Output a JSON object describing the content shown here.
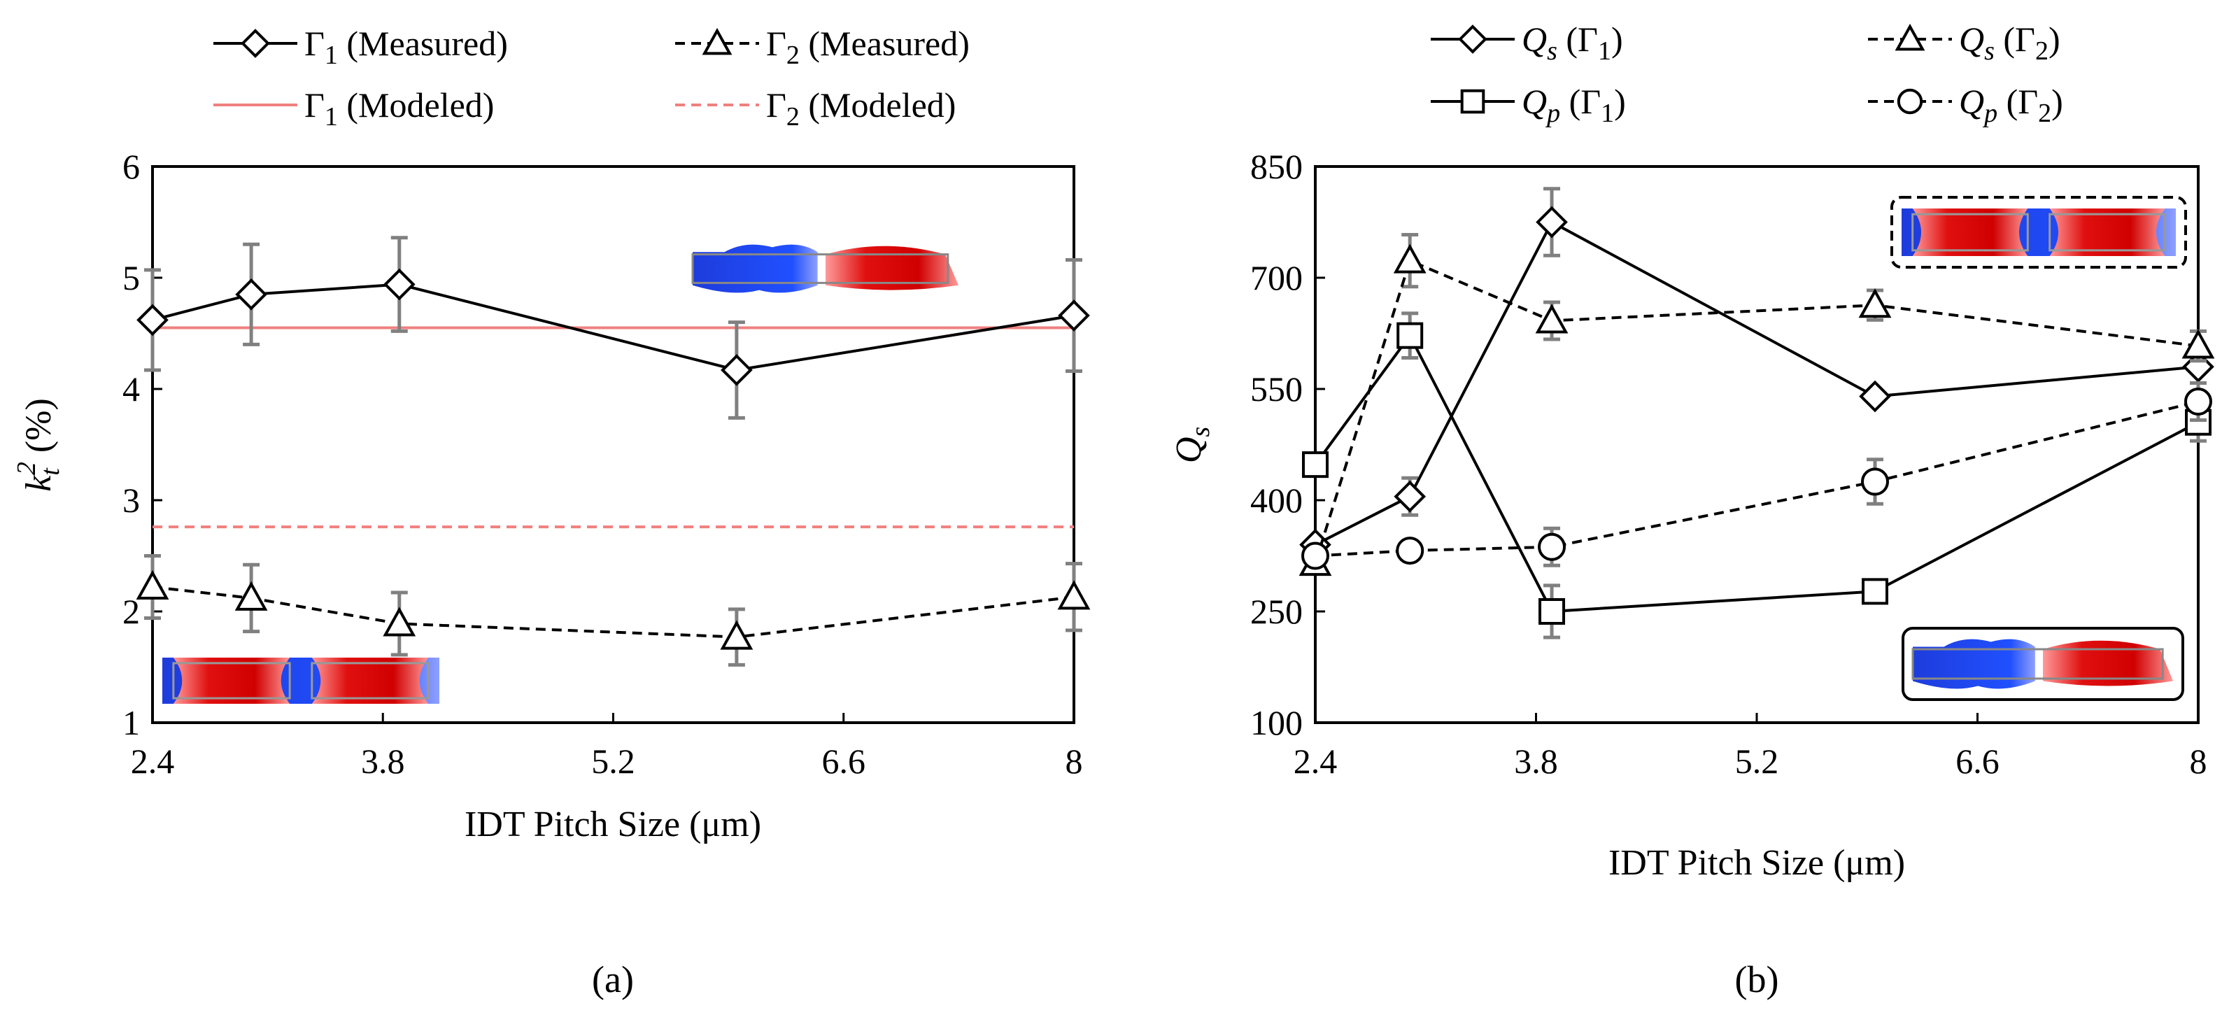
{
  "chart_data": [
    {
      "panel": "a",
      "caption": "(a)",
      "type": "line",
      "xlabel": "IDT Pitch Size (μm)",
      "ylabel": {
        "base": "k",
        "sub": "t",
        "sup": "2",
        "unit": " (%)"
      },
      "xlim": [
        2.4,
        8
      ],
      "ylim": [
        1,
        6
      ],
      "xticks": [
        2.4,
        3.8,
        5.2,
        6.6,
        8
      ],
      "xtick_labels": [
        "2.4",
        "3.8",
        "5.2",
        "6.6",
        "8"
      ],
      "yticks": [
        1,
        2,
        3,
        4,
        5,
        6
      ],
      "ytick_labels": [
        "1",
        "2",
        "3",
        "4",
        "5",
        "6"
      ],
      "series": [
        {
          "name": "Γ1 (Measured)",
          "label_main": "Γ",
          "label_sub": "1",
          "label_rest": " (Measured)",
          "marker": "diamond",
          "dash": "solid",
          "x": [
            2.4,
            3.0,
            3.9,
            5.95,
            8.0
          ],
          "y": [
            4.62,
            4.85,
            4.94,
            4.17,
            4.66
          ],
          "err": [
            0.45,
            0.45,
            0.42,
            0.43,
            0.5
          ]
        },
        {
          "name": "Γ2 (Measured)",
          "label_main": "Γ",
          "label_sub": "2",
          "label_rest": " (Measured)",
          "marker": "triangle",
          "dash": "dashed",
          "x": [
            2.4,
            3.0,
            3.9,
            5.95,
            8.0
          ],
          "y": [
            2.22,
            2.12,
            1.89,
            1.77,
            2.13
          ],
          "err": [
            0.28,
            0.3,
            0.28,
            0.25,
            0.3
          ]
        }
      ],
      "reference_lines": [
        {
          "name": "Γ1 (Modeled)",
          "label_main": "Γ",
          "label_sub": "1",
          "label_rest": " (Modeled)",
          "y": 4.55,
          "color": "#f08080",
          "dash": "solid"
        },
        {
          "name": "Γ2 (Modeled)",
          "label_main": "Γ",
          "label_sub": "2",
          "label_rest": " (Modeled)",
          "y": 2.76,
          "color": "#f08080",
          "dash": "dashed"
        }
      ],
      "insets": [
        {
          "name": "mode-shape-inset-upper",
          "style": "blue-red"
        },
        {
          "name": "mode-shape-inset-lower",
          "style": "red-blue-red"
        }
      ]
    },
    {
      "panel": "b",
      "caption": "(b)",
      "type": "line",
      "xlabel": "IDT Pitch Size (μm)",
      "ylabel": {
        "base": "Q",
        "sub": "s"
      },
      "xlim": [
        2.4,
        8
      ],
      "ylim": [
        100,
        850
      ],
      "xticks": [
        2.4,
        3.8,
        5.2,
        6.6,
        8
      ],
      "xtick_labels": [
        "2.4",
        "3.8",
        "5.2",
        "6.6",
        "8"
      ],
      "yticks": [
        100,
        250,
        400,
        550,
        700,
        850
      ],
      "ytick_labels": [
        "100",
        "250",
        "400",
        "550",
        "700",
        "850"
      ],
      "series": [
        {
          "name": "Qs (Γ1)",
          "label_main": "Q",
          "label_sub": "s",
          "label_rest": " (Γ",
          "label_rest_sub": "1",
          "label_end": ")",
          "marker": "diamond",
          "dash": "solid",
          "x": [
            2.4,
            3.0,
            3.9,
            5.95,
            8.0
          ],
          "y": [
            340,
            405,
            775,
            540,
            580
          ],
          "err": [
            0,
            25,
            45,
            0,
            0
          ]
        },
        {
          "name": "Qs (Γ2)",
          "label_main": "Q",
          "label_sub": "s",
          "label_rest": " (Γ",
          "label_rest_sub": "2",
          "label_end": ")",
          "marker": "triangle",
          "dash": "dashed",
          "x": [
            2.4,
            3.0,
            3.9,
            5.95,
            8.0
          ],
          "y": [
            315,
            723,
            642,
            663,
            608
          ],
          "err": [
            0,
            35,
            25,
            20,
            20
          ]
        },
        {
          "name": "Qp (Γ1)",
          "label_main": "Q",
          "label_sub": "p",
          "label_rest": " (Γ",
          "label_rest_sub": "1",
          "label_end": ")",
          "marker": "square",
          "dash": "solid",
          "x": [
            2.4,
            3.0,
            3.9,
            5.95,
            8.0
          ],
          "y": [
            448,
            622,
            250,
            277,
            505
          ],
          "err": [
            0,
            30,
            35,
            0,
            25
          ]
        },
        {
          "name": "Qp (Γ2)",
          "label_main": "Q",
          "label_sub": "p",
          "label_rest": " (Γ",
          "label_rest_sub": "2",
          "label_end": ")",
          "marker": "circle",
          "dash": "dashed",
          "x": [
            2.4,
            3.0,
            3.9,
            5.95,
            8.0
          ],
          "y": [
            325,
            332,
            337,
            425,
            533
          ],
          "err": [
            0,
            0,
            25,
            30,
            25
          ]
        }
      ],
      "insets": [
        {
          "name": "mode-shape-inset-upper",
          "style": "red-blue-red"
        },
        {
          "name": "mode-shape-inset-lower",
          "style": "blue-red"
        }
      ]
    }
  ]
}
